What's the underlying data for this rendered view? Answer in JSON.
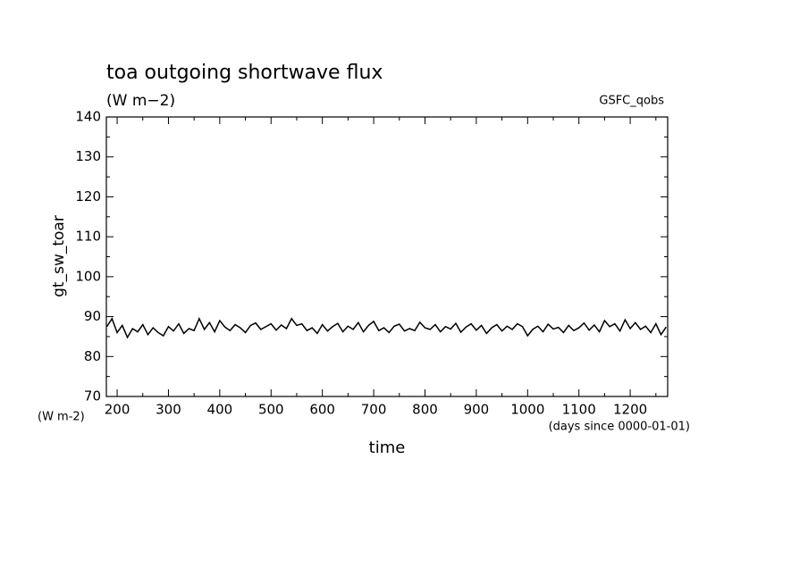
{
  "chart_data": {
    "type": "line",
    "title": "toa outgoing shortwave flux",
    "subtitle": "(W m−2)",
    "source_label": "GSFC_qobs",
    "ylabel": "gt_sw_toar",
    "xlabel": "time",
    "y_unit_note": "(W m-2)",
    "x_unit_note": "(days since 0000-01-01)",
    "xlim": [
      179,
      1273
    ],
    "ylim": [
      70,
      140
    ],
    "xticks": [
      200,
      300,
      400,
      500,
      600,
      700,
      800,
      900,
      1000,
      1100,
      1200
    ],
    "yticks": [
      70,
      80,
      90,
      100,
      110,
      120,
      130,
      140
    ],
    "x_minor_ticks": [
      250,
      350,
      450,
      550,
      650,
      750,
      850,
      950,
      1050,
      1150,
      1250
    ],
    "y_minor_ticks": [
      75,
      85,
      95,
      105,
      115,
      125,
      135
    ],
    "color": "#000000",
    "x": [
      180,
      190,
      200,
      210,
      220,
      230,
      240,
      250,
      260,
      270,
      280,
      290,
      300,
      310,
      320,
      330,
      340,
      350,
      360,
      370,
      380,
      390,
      400,
      410,
      420,
      430,
      440,
      450,
      460,
      470,
      480,
      490,
      500,
      510,
      520,
      530,
      540,
      550,
      560,
      570,
      580,
      590,
      600,
      610,
      620,
      630,
      640,
      650,
      660,
      670,
      680,
      690,
      700,
      710,
      720,
      730,
      740,
      750,
      760,
      770,
      780,
      790,
      800,
      810,
      820,
      830,
      840,
      850,
      860,
      870,
      880,
      890,
      900,
      910,
      920,
      930,
      940,
      950,
      960,
      970,
      980,
      990,
      1000,
      1010,
      1020,
      1030,
      1040,
      1050,
      1060,
      1070,
      1080,
      1090,
      1100,
      1110,
      1120,
      1130,
      1140,
      1150,
      1160,
      1170,
      1180,
      1190,
      1200,
      1210,
      1220,
      1230,
      1240,
      1250,
      1260,
      1270
    ],
    "values": [
      87.5,
      89.5,
      86,
      87.8,
      84.8,
      87,
      86.2,
      88,
      85.5,
      87.2,
      86,
      85.2,
      87.5,
      86.4,
      88.2,
      85.8,
      87,
      86.5,
      89.5,
      86.8,
      88.5,
      86.2,
      89,
      87.4,
      86.5,
      88,
      87.2,
      86,
      87.8,
      88.4,
      86.8,
      87.5,
      88.2,
      86.6,
      87.9,
      87,
      89.5,
      87.8,
      88.2,
      86.5,
      87.2,
      85.8,
      88,
      86.4,
      87.5,
      88.3,
      86.2,
      87.6,
      86.8,
      88.5,
      86.2,
      87.8,
      88.8,
      86.5,
      87.2,
      86,
      87.6,
      88.1,
      86.4,
      87,
      86.5,
      88.6,
      87.2,
      86.8,
      88,
      86.2,
      87.5,
      86.9,
      88.3,
      86.1,
      87.4,
      88.2,
      86.6,
      87.8,
      85.8,
      87.2,
      88,
      86.4,
      87.6,
      86.8,
      88.2,
      87.5,
      85.2,
      86.8,
      87.6,
      86.2,
      88.1,
      86.9,
      87.3,
      86,
      87.8,
      86.5,
      87.2,
      88.4,
      86.6,
      87.9,
      86.2,
      89,
      87.5,
      88.2,
      86.4,
      89.2,
      87,
      88.5,
      86.8,
      87.6,
      86,
      88.2,
      85.5,
      87.4
    ]
  }
}
